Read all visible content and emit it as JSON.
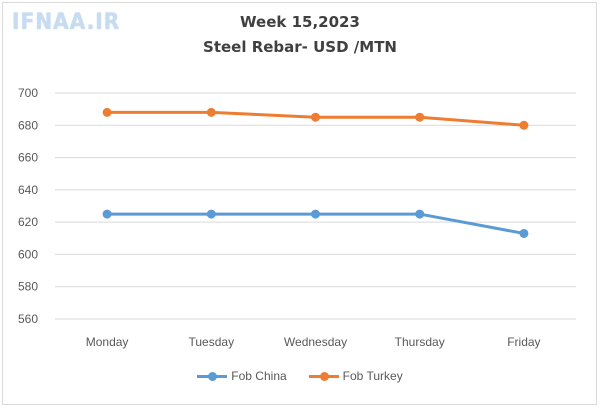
{
  "watermark": "IFNAA.IR",
  "chart_data": {
    "type": "line",
    "title": "Week 15,2023",
    "subtitle": "Steel Rebar- USD /MTN",
    "categories": [
      "Monday",
      "Tuesday",
      "Wednesday",
      "Thursday",
      "Friday"
    ],
    "yticks": [
      "560",
      "580",
      "600",
      "620",
      "640",
      "660",
      "680",
      "700"
    ],
    "ylim": [
      550,
      705
    ],
    "grid": true,
    "legend_position": "bottom",
    "series": [
      {
        "name": "Fob China",
        "color": "#5b9bd5",
        "values": [
          625,
          625,
          625,
          625,
          613
        ]
      },
      {
        "name": "Fob Turkey",
        "color": "#ed7d31",
        "values": [
          688,
          688,
          685,
          685,
          680
        ]
      }
    ]
  }
}
